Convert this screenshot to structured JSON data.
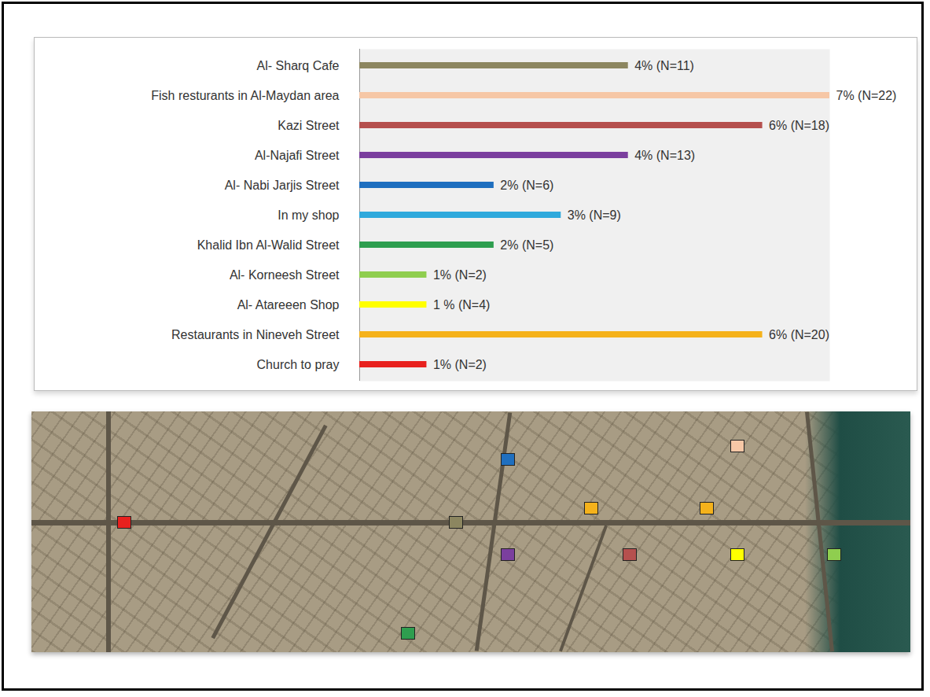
{
  "chart_data": {
    "type": "bar",
    "orientation": "horizontal",
    "categories": [
      "Al- Sharq Cafe",
      "Fish resturants in Al-Maydan area",
      "Kazi Street",
      "Al-Najafi Street",
      "Al- Nabi Jarjis Street",
      "In my shop",
      "Khalid Ibn Al-Walid Street",
      "Al- Korneesh Street",
      "Al- Atareeen Shop",
      "Restaurants in Nineveh Street",
      "Church to pray"
    ],
    "values": [
      4,
      7,
      6,
      4,
      2,
      3,
      2,
      1,
      1,
      6,
      1
    ],
    "value_labels": [
      "4% (N=11)",
      "7% (N=22)",
      "6% (N=18)",
      "4% (N=13)",
      "2% (N=6)",
      "3% (N=9)",
      "2% (N=5)",
      "1% (N=2)",
      "1 % (N=4)",
      "6% (N=20)",
      "1% (N=2)"
    ],
    "colors": [
      "#8c8660",
      "#f6c7a6",
      "#b5504e",
      "#7b3f9e",
      "#1f6fbf",
      "#2fa9dc",
      "#2e9e4f",
      "#8fce4f",
      "#ffff00",
      "#f5b21b",
      "#e8211e"
    ],
    "xlim": [
      0,
      7
    ],
    "data_labels": true,
    "tick_labels": "y",
    "grid": false
  }
}
